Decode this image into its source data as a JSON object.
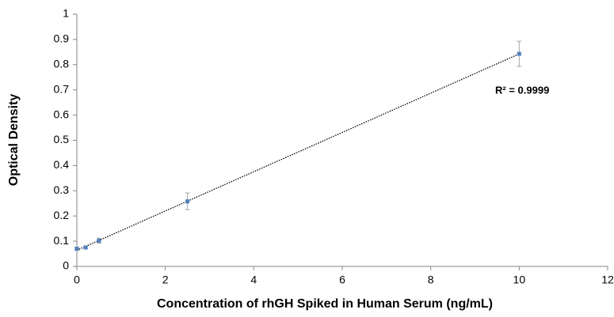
{
  "chart_data": {
    "type": "scatter",
    "x_label": "Concentration of rhGH Spiked in Human Serum (ng/mL)",
    "y_label": "Optical Density",
    "annotation": "R² = 0.9999",
    "series": [
      {
        "color": "#4f81bd",
        "error_color": "#a6a6a6",
        "x": [
          0,
          0.2,
          0.5,
          2.5,
          10
        ],
        "values": [
          0.07,
          0.075,
          0.102,
          0.258,
          0.843
        ],
        "errors": [
          0.006,
          0.006,
          0.01,
          0.033,
          0.05
        ]
      }
    ],
    "trendline": "linear",
    "xlim": [
      0,
      12
    ],
    "xticks": [
      0,
      2,
      4,
      6,
      8,
      10,
      12
    ],
    "ylim": [
      0,
      1
    ],
    "yticks": [
      0,
      0.1,
      0.2,
      0.3,
      0.4,
      0.5,
      0.6,
      0.7,
      0.8,
      0.9,
      1
    ],
    "grid": false
  }
}
